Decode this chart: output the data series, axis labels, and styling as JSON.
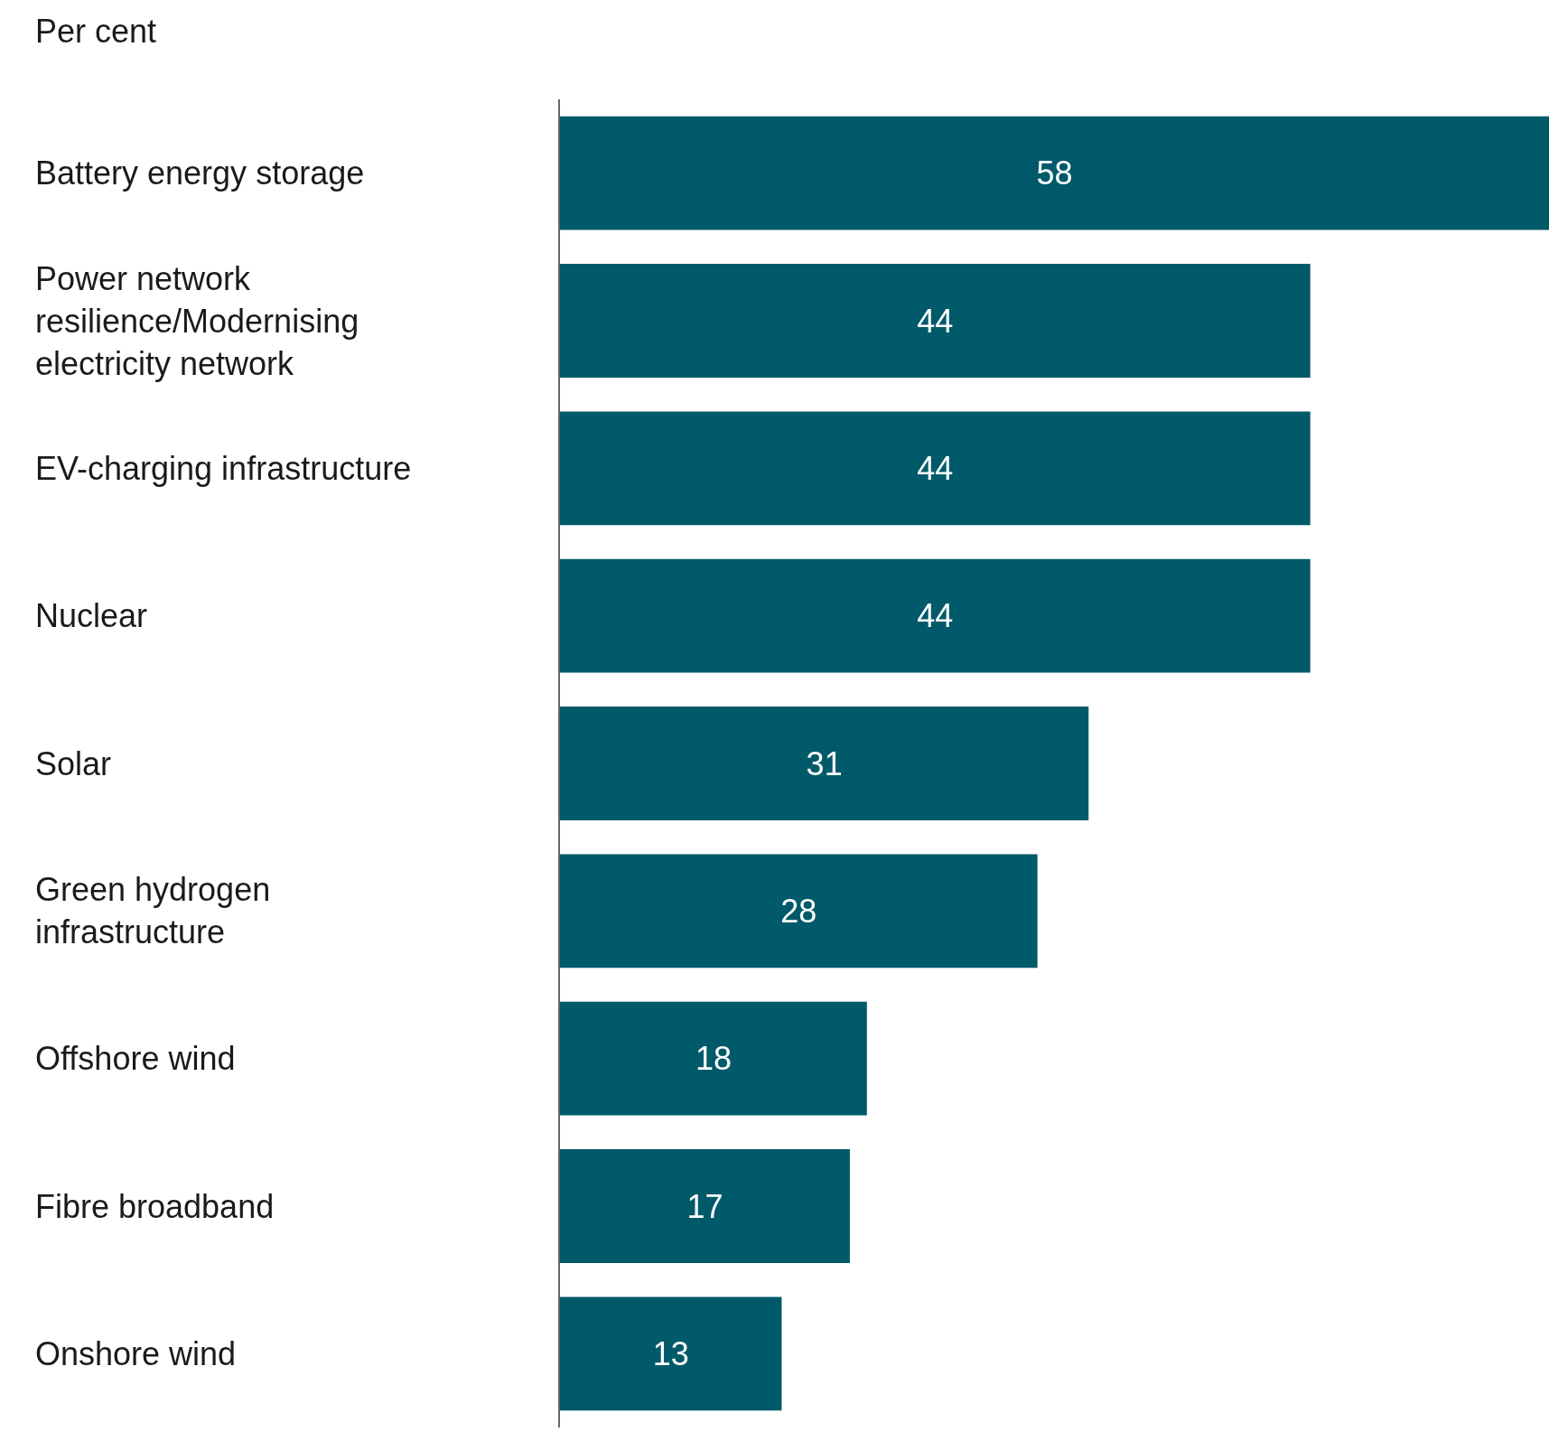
{
  "chart_data": {
    "type": "bar",
    "orientation": "horizontal",
    "xlabel": "Per cent",
    "categories": [
      "Battery energy storage",
      "Power network resilience/Modernising electricity network",
      "EV-charging infrastructure",
      "Nuclear",
      "Solar",
      "Green hydrogen infrastructure",
      "Offshore wind",
      "Fibre broadband",
      "Onshore wind"
    ],
    "values": [
      58,
      44,
      44,
      44,
      31,
      28,
      18,
      17,
      13
    ],
    "color": "#005a6a",
    "data_labels": true,
    "legend": false
  }
}
